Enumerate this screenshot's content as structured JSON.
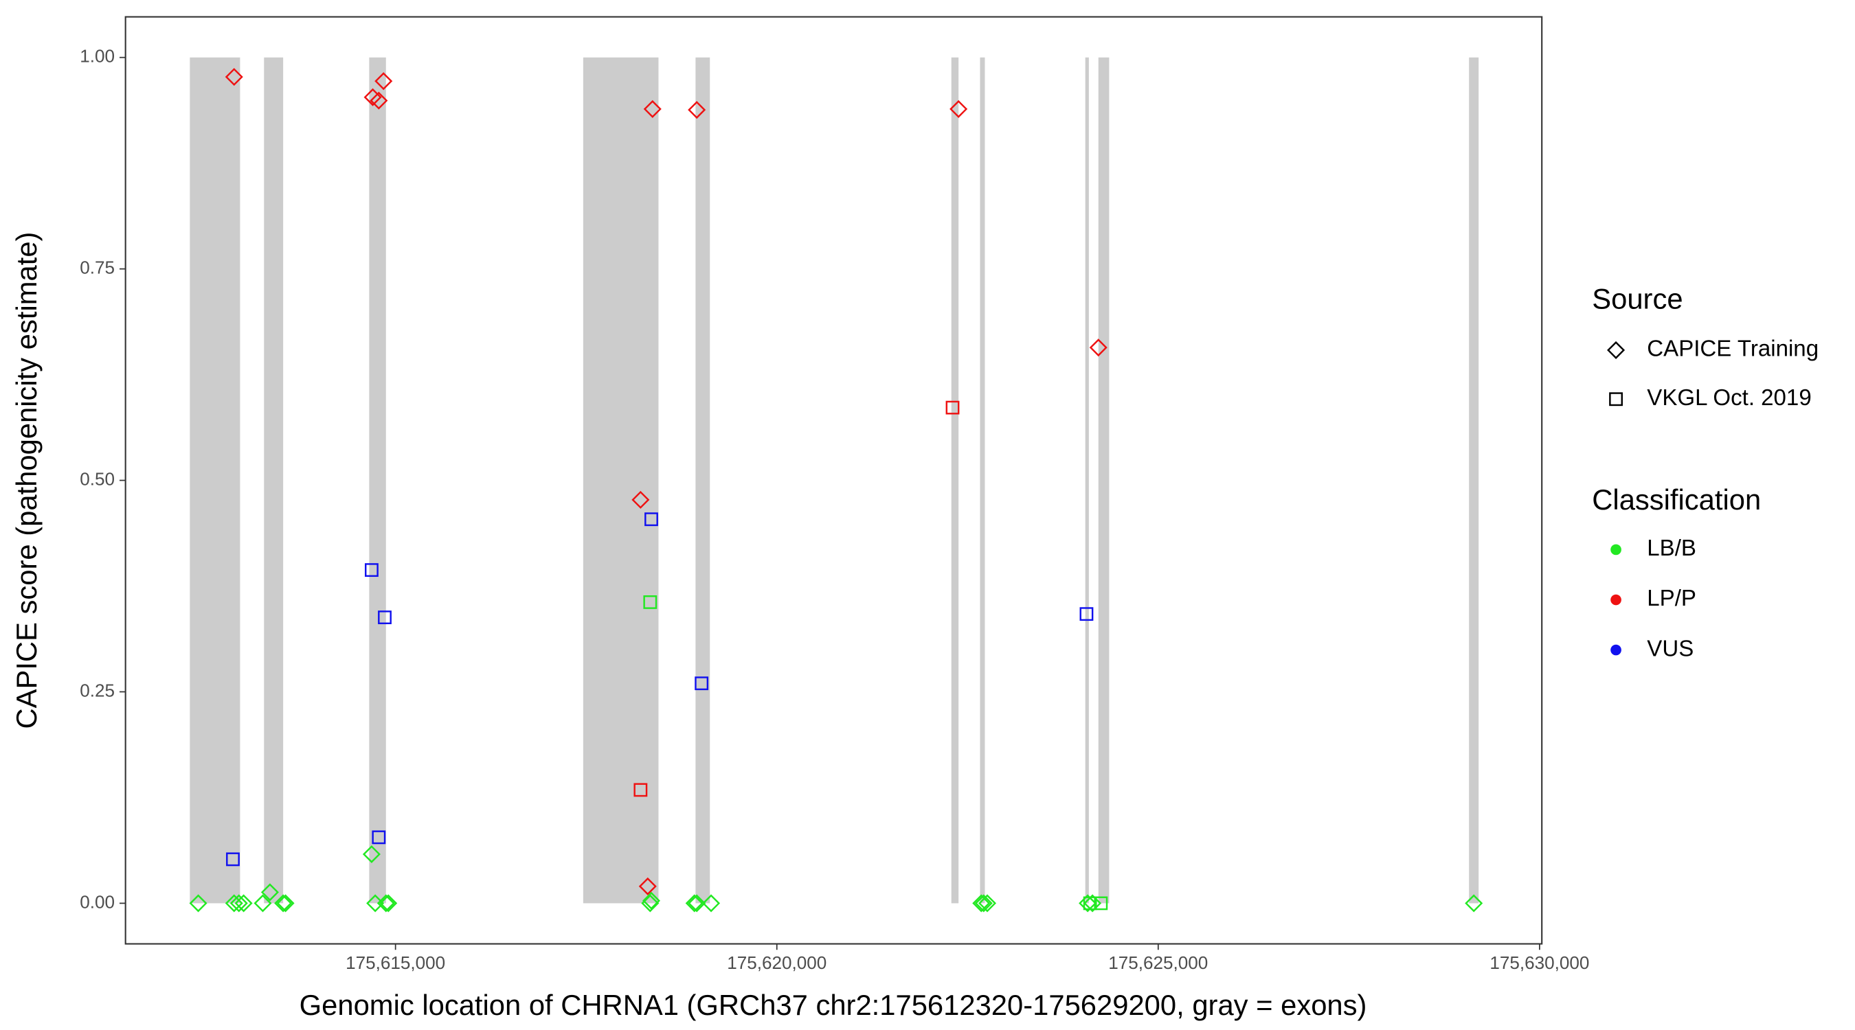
{
  "chart_data": {
    "type": "scatter",
    "x_label": "Genomic location of CHRNA1 (GRCh37 chr2:175612320-175629200, gray = exons)",
    "y_label": "CAPICE score (pathogenicity estimate)",
    "xlim": [
      175611460,
      175630030
    ],
    "ylim": [
      -0.048,
      1.048
    ],
    "xticks": [
      {
        "value": 175615000,
        "label": "175,615,000"
      },
      {
        "value": 175620000,
        "label": "175,620,000"
      },
      {
        "value": 175625000,
        "label": "175,625,000"
      },
      {
        "value": 175630000,
        "label": "175,630,000"
      }
    ],
    "yticks": [
      {
        "value": 0,
        "label": "0.00"
      },
      {
        "value": 0.25,
        "label": "0.25"
      },
      {
        "value": 0.5,
        "label": "0.50"
      },
      {
        "value": 0.75,
        "label": "0.75"
      },
      {
        "value": 1,
        "label": "1.00"
      }
    ],
    "exon_color": "#cccccc",
    "exons": [
      [
        175612304,
        175612962
      ],
      [
        175613276,
        175613527
      ],
      [
        175614655,
        175614875
      ],
      [
        175617461,
        175618448
      ],
      [
        175618934,
        175619122
      ],
      [
        175622288,
        175622382
      ],
      [
        175622664,
        175622727
      ],
      [
        175624044,
        175624091
      ],
      [
        175624216,
        175624357
      ],
      [
        175629075,
        175629201
      ]
    ],
    "source_title": "Source",
    "sources": [
      {
        "name": "CAPICE Training",
        "shape": "diamond"
      },
      {
        "name": "VKGL Oct. 2019",
        "shape": "square"
      }
    ],
    "classification_title": "Classification",
    "classifications": [
      {
        "name": "LB/B",
        "color": "#22e822"
      },
      {
        "name": "LP/P",
        "color": "#ee1111"
      },
      {
        "name": "VUS",
        "color": "#1111ee"
      }
    ],
    "points": {
      "x": [
        175612884,
        175614702,
        175614781,
        175614843,
        175618370,
        175618950,
        175622382,
        175624216,
        175618213,
        175618307,
        175612414,
        175612884,
        175612947,
        175613009,
        175613260,
        175613354,
        175613527,
        175613558,
        175614687,
        175614734,
        175614875,
        175614906,
        175618339,
        175618354,
        175618919,
        175618950,
        175619138,
        175622680,
        175622712,
        175622759,
        175624075,
        175624138,
        175629138,
        175612868,
        175614687,
        175614859,
        175614781,
        175618354,
        175619013,
        175624060,
        175618339,
        175624107,
        175624248,
        175622304,
        175618213
      ],
      "y": [
        0.977,
        0.953,
        0.949,
        0.972,
        0.939,
        0.938,
        0.939,
        0.657,
        0.477,
        0.02,
        0,
        0,
        0,
        0,
        0,
        0.013,
        0,
        0,
        0.058,
        0,
        0,
        0,
        0,
        0.003,
        0,
        0,
        0,
        0,
        0,
        0,
        0,
        0,
        0,
        0.052,
        0.394,
        0.338,
        0.078,
        0.454,
        0.26,
        0.342,
        0.356,
        0,
        0,
        0.586,
        0.134
      ],
      "source": [
        0,
        0,
        0,
        0,
        0,
        0,
        0,
        0,
        0,
        0,
        0,
        0,
        0,
        0,
        0,
        0,
        0,
        0,
        0,
        0,
        0,
        0,
        0,
        0,
        0,
        0,
        0,
        0,
        0,
        0,
        0,
        0,
        0,
        1,
        1,
        1,
        1,
        1,
        1,
        1,
        1,
        1,
        1,
        1,
        1
      ],
      "classification": [
        1,
        1,
        1,
        1,
        1,
        1,
        1,
        1,
        1,
        1,
        0,
        0,
        0,
        0,
        0,
        0,
        0,
        0,
        0,
        0,
        0,
        0,
        0,
        0,
        0,
        0,
        0,
        0,
        0,
        0,
        0,
        0,
        0,
        2,
        2,
        2,
        2,
        2,
        2,
        2,
        0,
        0,
        0,
        1,
        1
      ]
    }
  }
}
